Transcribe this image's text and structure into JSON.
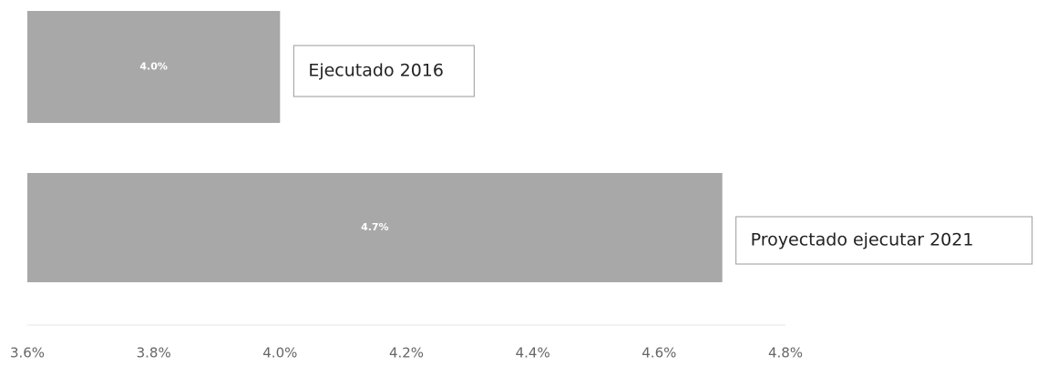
{
  "chart_data": {
    "type": "barh",
    "categories": [
      "Ejecutado 2016",
      "Proyectado ejecutar 2021"
    ],
    "values": [
      4.0,
      4.7
    ],
    "value_labels": [
      "4.0%",
      "4.7%"
    ],
    "color": "#a8a8a8",
    "xlim": [
      3.6,
      4.8
    ],
    "xticks": [
      {
        "value": 3.6,
        "label": "3.6%"
      },
      {
        "value": 3.8,
        "label": "3.8%"
      },
      {
        "value": 4.0,
        "label": "4.0%"
      },
      {
        "value": 4.2,
        "label": "4.2%"
      },
      {
        "value": 4.4,
        "label": "4.4%"
      },
      {
        "value": 4.6,
        "label": "4.6%"
      },
      {
        "value": 4.8,
        "label": "4.8%"
      }
    ],
    "grid": false
  }
}
